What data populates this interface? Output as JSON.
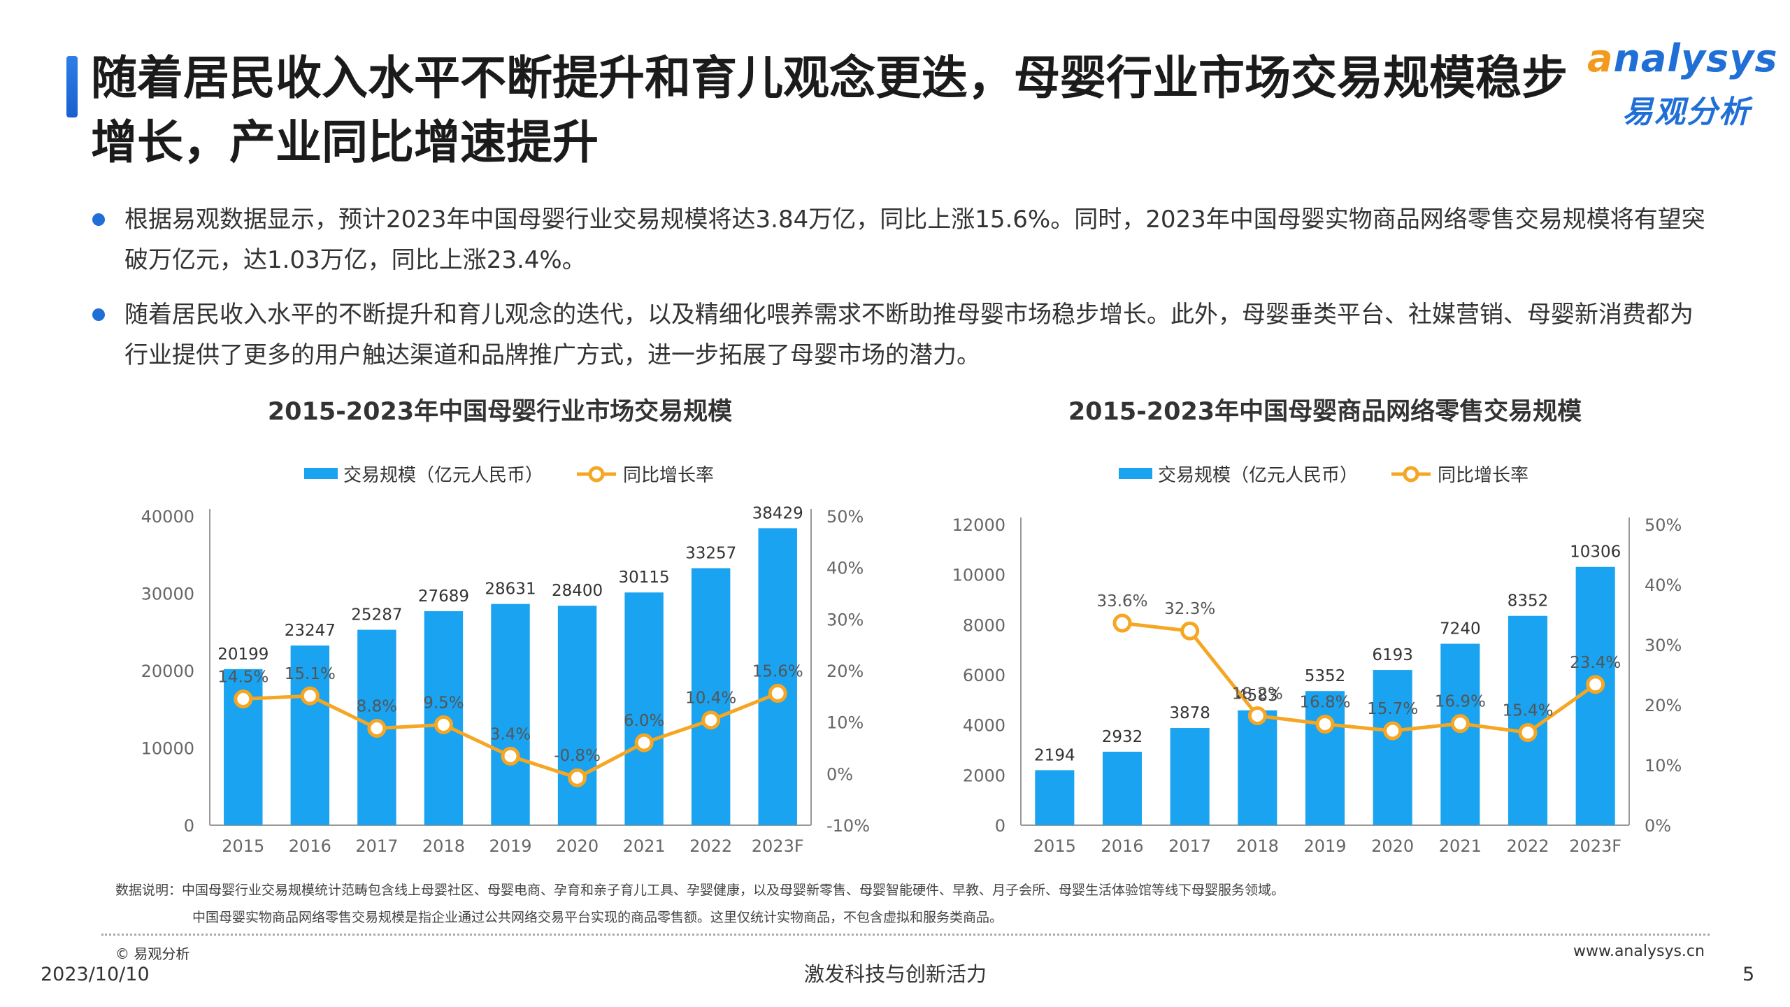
{
  "title": "随着居民收入水平不断提升和育儿观念更迭，母婴行业市场交易规模稳步增长，产业同比增速提升",
  "logo": {
    "en": "analysys",
    "cn": "易观分析"
  },
  "bullets": [
    "根据易观数据显示，预计2023年中国母婴行业交易规模将达3.84万亿，同比上涨15.6%。同时，2023年中国母婴实物商品网络零售交易规模将有望突破万亿元，达1.03万亿，同比上涨23.4%。",
    "随着居民收入水平的不断提升和育儿观念的迭代，以及精细化喂养需求不断助推母婴市场稳步增长。此外，母婴垂类平台、社媒营销、母婴新消费都为行业提供了更多的用户触达渠道和品牌推广方式，进一步拓展了母婴市场的潜力。"
  ],
  "colors": {
    "bar": "#19a3f0",
    "line": "#f5a623",
    "axis": "#666666",
    "accent": "#1f6fd6"
  },
  "chart_data": [
    {
      "type": "bar",
      "title": "2015-2023年中国母婴行业市场交易规模",
      "categories": [
        "2015",
        "2016",
        "2017",
        "2018",
        "2019",
        "2020",
        "2021",
        "2022",
        "2023F"
      ],
      "legend": [
        "交易规模（亿元人民币）",
        "同比增长率"
      ],
      "series": [
        {
          "name": "交易规模（亿元人民币）",
          "values": [
            20199,
            23247,
            25287,
            27689,
            28631,
            28400,
            30115,
            33257,
            38429
          ]
        },
        {
          "name": "同比增长率",
          "type": "line",
          "values": [
            14.5,
            15.1,
            8.8,
            9.5,
            3.4,
            -0.8,
            6.0,
            10.4,
            15.6
          ]
        }
      ],
      "ylim": [
        0,
        40000
      ],
      "yticks": [
        "40000",
        "30000",
        "20000",
        "10000",
        "0"
      ],
      "y2lim": [
        -10,
        50
      ],
      "y2ticks": [
        "50%",
        "40%",
        "30%",
        "20%",
        "10%",
        "0%",
        "-10%"
      ],
      "legend_position": "top"
    },
    {
      "type": "bar",
      "title": "2015-2023年中国母婴商品网络零售交易规模",
      "categories": [
        "2015",
        "2016",
        "2017",
        "2018",
        "2019",
        "2020",
        "2021",
        "2022",
        "2023F"
      ],
      "legend": [
        "交易规模（亿元人民币）",
        "同比增长率"
      ],
      "series": [
        {
          "name": "交易规模（亿元人民币）",
          "values": [
            2194,
            2932,
            3878,
            4583,
            5352,
            6193,
            7240,
            8352,
            10306
          ]
        },
        {
          "name": "同比增长率",
          "type": "line",
          "values": [
            null,
            33.6,
            32.3,
            18.2,
            16.8,
            15.7,
            16.9,
            15.4,
            23.4
          ]
        }
      ],
      "ylim": [
        0,
        12000
      ],
      "yticks": [
        "12000",
        "10000",
        "8000",
        "6000",
        "4000",
        "2000",
        "0"
      ],
      "y2lim": [
        0,
        50
      ],
      "y2ticks": [
        "50%",
        "40%",
        "30%",
        "20%",
        "10%",
        "0%"
      ],
      "legend_position": "top"
    }
  ],
  "notes": {
    "label": "数据说明：",
    "line1": "中国母婴行业交易规模统计范畴包含线上母婴社区、母婴电商、孕育和亲子育儿工具、孕婴健康，以及母婴新零售、母婴智能硬件、早教、月子会所、母婴生活体验馆等线下母婴服务领域。",
    "line2": "中国母婴实物商品网络零售交易规模是指企业通过公共网络交易平台实现的商品零售额。这里仅统计实物商品，不包含虚拟和服务类商品。"
  },
  "footer": {
    "copyright": "© 易观分析",
    "date": "2023/10/10",
    "slogan": "激发科技与创新活力",
    "website": "www.analysys.cn",
    "page": "5"
  }
}
